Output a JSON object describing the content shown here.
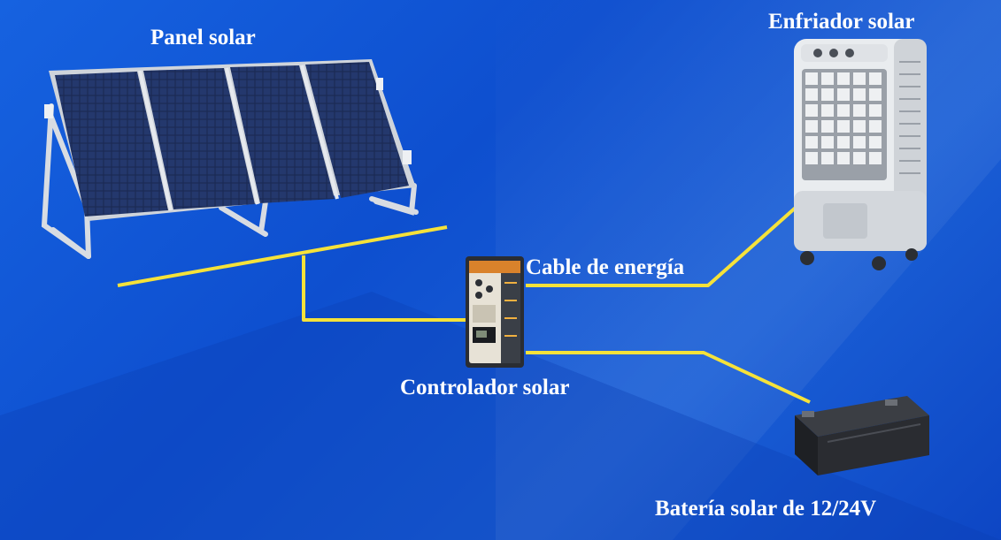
{
  "labels": {
    "solar_panel": "Panel solar",
    "cooler": "Enfriador solar",
    "cable": "Cable de energía",
    "controller": "Controlador solar",
    "battery": "Batería solar de 12/24V"
  },
  "colors": {
    "background": "#1258d8",
    "wire": "#f5e23a",
    "label_text": "#ffffff"
  },
  "icons": [
    "solar-panel-array-icon",
    "solar-controller-icon",
    "evaporative-cooler-icon",
    "battery-icon"
  ]
}
